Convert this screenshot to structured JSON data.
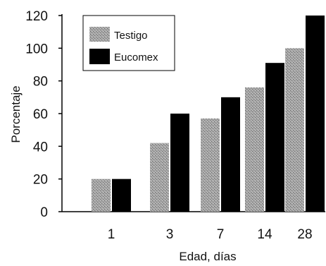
{
  "chart_data": {
    "type": "bar",
    "title": "",
    "xlabel": "Edad, días",
    "ylabel": "Porcentaje",
    "categories": [
      "1",
      "3",
      "7",
      "14",
      "28"
    ],
    "ylim": [
      0,
      120
    ],
    "yticks": [
      "0",
      "20",
      "40",
      "60",
      "80",
      "100",
      "120"
    ],
    "series": [
      {
        "name": "Testigo",
        "values": [
          20,
          42,
          57,
          76,
          100
        ],
        "color": "#9a9a9a",
        "pattern": "stippled"
      },
      {
        "name": "Eucomex",
        "values": [
          20,
          60,
          70,
          91,
          120
        ],
        "color": "#000000"
      }
    ],
    "legend_position": "top-left",
    "grid": false
  }
}
